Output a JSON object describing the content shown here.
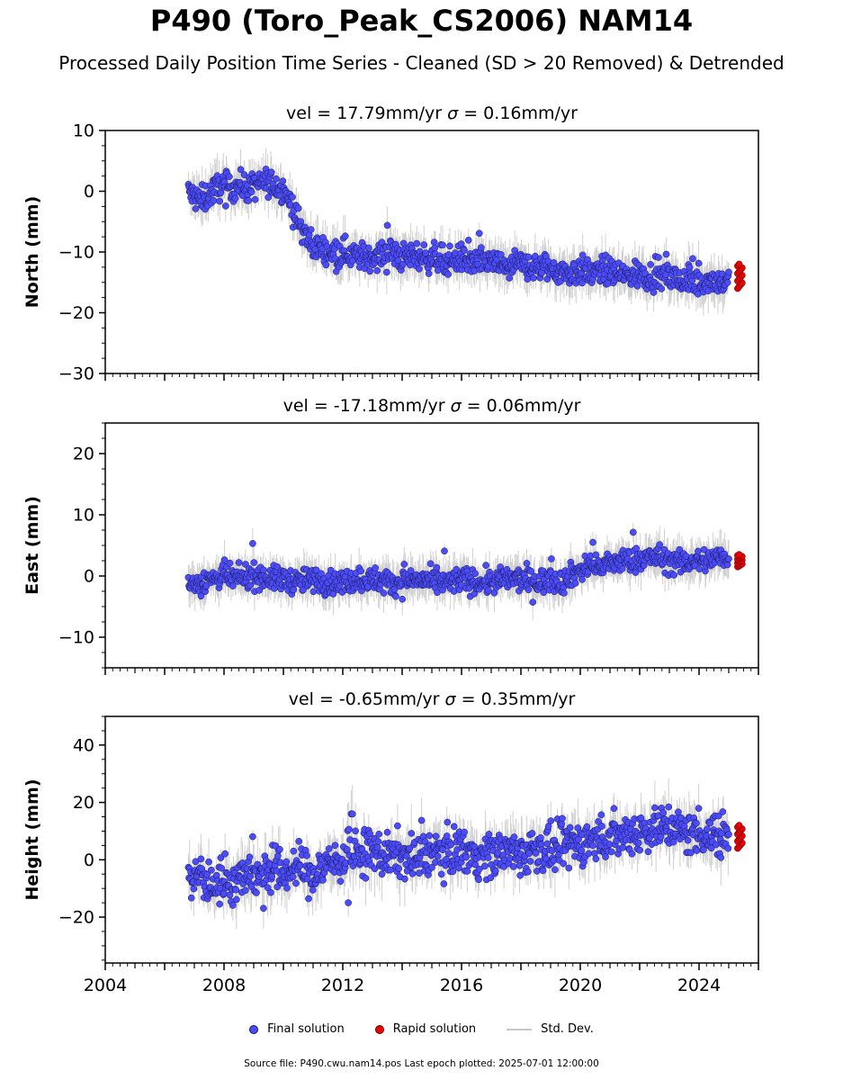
{
  "figure": {
    "title": "P490 (Toro_Peak_CS2006) NAM14",
    "subtitle": "Processed Daily Position Time Series - Cleaned (SD > 20 Removed) & Detrended",
    "footer": "Source file: P490.cwu.nam14.pos  Last epoch plotted: 2025-07-01 12:00:00"
  },
  "legend": {
    "final": "Final solution",
    "rapid": "Rapid solution",
    "stddev": "Std. Dev."
  },
  "colors": {
    "final": "#4b4bff",
    "final_edge": "#1a1a4a",
    "rapid": "#e60000",
    "stddev": "#c8c8c8"
  },
  "chart_data": [
    {
      "type": "scatter",
      "panel": "north",
      "title_prefix": "vel = 17.79mm/yr",
      "title_sigma": " = 0.16mm/yr",
      "ylabel": "North (mm)",
      "xlim": [
        2004,
        2026
      ],
      "ylim": [
        -30,
        10
      ],
      "yticks": [
        -30,
        -20,
        -10,
        0,
        10
      ],
      "xticks": [],
      "series": [
        {
          "name": "Final solution",
          "x": [
            2006.8,
            2007.0,
            2007.3,
            2007.6,
            2007.9,
            2008.2,
            2008.5,
            2008.8,
            2009.1,
            2009.4,
            2009.7,
            2010.0,
            2010.2,
            2010.4,
            2010.6,
            2010.8,
            2011.0,
            2011.3,
            2011.6,
            2012.0,
            2012.4,
            2012.8,
            2013.2,
            2013.6,
            2014.0,
            2014.4,
            2014.8,
            2015.2,
            2015.6,
            2016.0,
            2016.4,
            2016.8,
            2017.2,
            2017.6,
            2018.0,
            2018.4,
            2018.8,
            2019.2,
            2019.6,
            2020.0,
            2020.4,
            2020.8,
            2021.2,
            2021.6,
            2022.0,
            2022.4,
            2022.8,
            2023.2,
            2023.6,
            2024.0,
            2024.4,
            2024.8,
            2025.0
          ],
          "y": [
            0,
            -1,
            -1.5,
            0,
            1,
            0.5,
            1,
            0.5,
            1,
            1.5,
            1,
            0.5,
            -1.5,
            -4,
            -6,
            -8,
            -9,
            -9.5,
            -10,
            -10,
            -10.5,
            -11,
            -10.5,
            -10,
            -11,
            -10.5,
            -11,
            -11,
            -11.5,
            -11,
            -12,
            -11.5,
            -12,
            -12.5,
            -12,
            -12.5,
            -12.5,
            -13,
            -13.5,
            -13,
            -13.5,
            -13,
            -13.5,
            -14,
            -13.5,
            -14,
            -14,
            -14.5,
            -15,
            -15,
            -14.5,
            -15,
            -15
          ]
        },
        {
          "name": "Rapid solution",
          "x": [
            2025.3,
            2025.35,
            2025.4,
            2025.45
          ],
          "y": [
            -13,
            -14.5,
            -16,
            -12
          ]
        }
      ]
    },
    {
      "type": "scatter",
      "panel": "east",
      "title_prefix": "vel = -17.18mm/yr",
      "title_sigma": " = 0.06mm/yr",
      "ylabel": "East (mm)",
      "xlim": [
        2004,
        2026
      ],
      "ylim": [
        -15,
        25
      ],
      "yticks": [
        -10,
        0,
        10,
        20
      ],
      "xticks": [],
      "series": [
        {
          "name": "Final solution",
          "x": [
            2006.8,
            2007.2,
            2007.6,
            2008.0,
            2008.4,
            2008.8,
            2009.2,
            2009.6,
            2010.0,
            2010.5,
            2011.0,
            2011.5,
            2012.0,
            2012.5,
            2013.0,
            2013.5,
            2014.0,
            2014.5,
            2015.0,
            2015.5,
            2016.0,
            2016.5,
            2017.0,
            2017.5,
            2018.0,
            2018.5,
            2019.0,
            2019.4,
            2019.8,
            2020.2,
            2020.6,
            2021.0,
            2021.4,
            2021.8,
            2022.2,
            2022.6,
            2023.0,
            2023.4,
            2023.8,
            2024.2,
            2024.6,
            2025.0
          ],
          "y": [
            -1.5,
            -1,
            -0.5,
            0,
            -0.5,
            0,
            0,
            -0.5,
            -0.5,
            -1,
            -0.5,
            -1,
            -1,
            -0.5,
            -0.5,
            -1,
            -1,
            -0.5,
            -1,
            -1,
            -0.5,
            -1,
            -1,
            -0.5,
            -0.5,
            -1,
            -0.5,
            -1,
            0.5,
            1.5,
            1.5,
            2,
            2.5,
            2.5,
            3,
            3,
            2.5,
            2,
            2.5,
            2.5,
            3,
            3
          ]
        },
        {
          "name": "Rapid solution",
          "x": [
            2025.3,
            2025.35,
            2025.4,
            2025.45
          ],
          "y": [
            1.5,
            2.5,
            3.5,
            2
          ]
        }
      ]
    },
    {
      "type": "scatter",
      "panel": "height",
      "title_prefix": "vel = -0.65mm/yr",
      "title_sigma": " = 0.35mm/yr",
      "ylabel": "Height (mm)",
      "xlim": [
        2004,
        2026
      ],
      "ylim": [
        -36,
        50
      ],
      "yticks": [
        -20,
        0,
        20,
        40
      ],
      "xticks": [
        "2004",
        "2008",
        "2012",
        "2016",
        "2020",
        "2024"
      ],
      "series": [
        {
          "name": "Final solution",
          "x": [
            2006.8,
            2007.2,
            2007.6,
            2008.0,
            2008.4,
            2008.8,
            2009.2,
            2009.6,
            2010.0,
            2010.5,
            2011.0,
            2011.5,
            2012.0,
            2012.5,
            2013.0,
            2013.5,
            2014.0,
            2014.5,
            2015.0,
            2015.5,
            2016.0,
            2016.5,
            2017.0,
            2017.5,
            2018.0,
            2018.5,
            2019.0,
            2019.5,
            2020.0,
            2020.5,
            2021.0,
            2021.5,
            2022.0,
            2022.5,
            2023.0,
            2023.5,
            2024.0,
            2024.5,
            2025.0
          ],
          "y": [
            -8,
            -5,
            -10,
            -6,
            -8,
            -4,
            -7,
            -3,
            -5,
            -2,
            -6,
            -1,
            0,
            2,
            3,
            1,
            2,
            0,
            3,
            2,
            4,
            1,
            2,
            3,
            2,
            4,
            3,
            5,
            6,
            7,
            8,
            9,
            10,
            11,
            12,
            9,
            10,
            8,
            9
          ]
        },
        {
          "name": "Rapid solution",
          "x": [
            2025.3,
            2025.35,
            2025.4,
            2025.45
          ],
          "y": [
            4,
            8,
            12,
            10
          ]
        }
      ]
    }
  ]
}
